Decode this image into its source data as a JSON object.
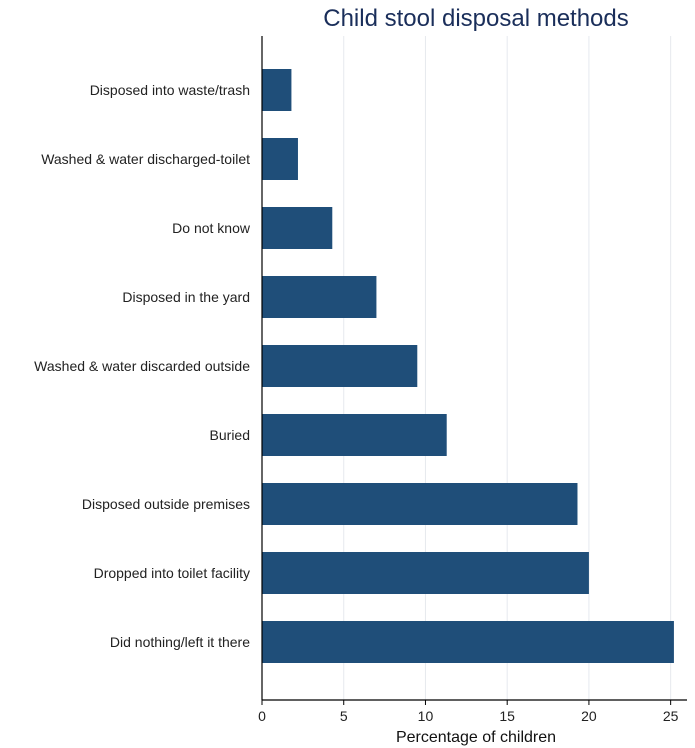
{
  "chart_data": {
    "type": "bar",
    "orientation": "horizontal",
    "title": "Child stool disposal methods",
    "xlabel": "Percentage of children",
    "ylabel": "",
    "xlim": [
      0,
      26
    ],
    "xticks": [
      0,
      5,
      10,
      15,
      20,
      25
    ],
    "grid": true,
    "bar_color": "#1f4e79",
    "categories": [
      "Disposed into waste/trash",
      "Washed & water discharged-toilet",
      "Do not know",
      "Disposed in the yard",
      "Washed & water discarded outside",
      "Buried",
      "Disposed outside premises",
      "Dropped into toilet facility",
      "Did nothing/left it there"
    ],
    "values": [
      1.8,
      2.2,
      4.3,
      7.0,
      9.5,
      11.3,
      19.3,
      20.0,
      25.2
    ]
  }
}
